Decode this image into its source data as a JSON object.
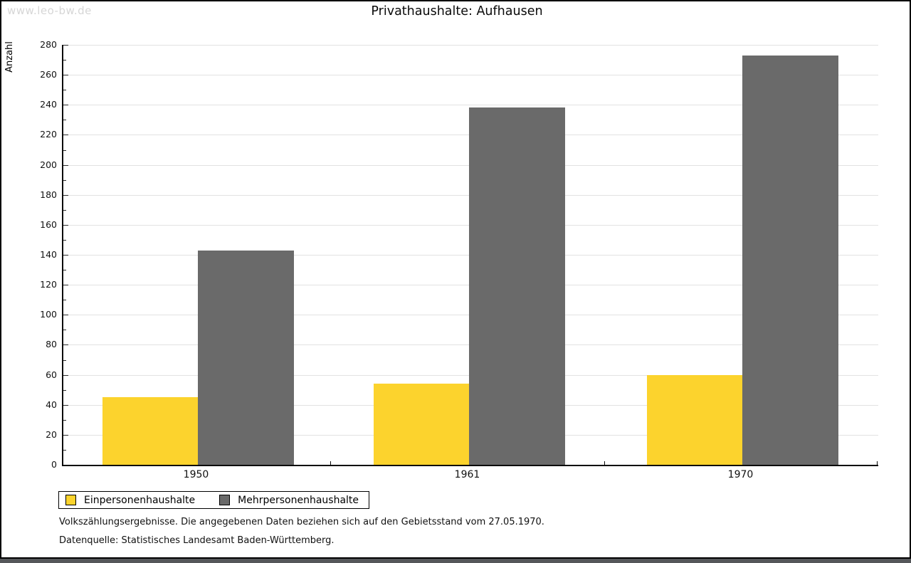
{
  "watermark": "www.leo-bw.de",
  "title": "Privathaushalte: Aufhausen",
  "chart_data": {
    "type": "bar",
    "title": "Privathaushalte: Aufhausen",
    "categories": [
      "1950",
      "1961",
      "1970"
    ],
    "series": [
      {
        "name": "Einpersonenhaushalte",
        "color": "#fcd32d",
        "values": [
          45,
          54,
          60
        ]
      },
      {
        "name": "Mehrpersonenhaushalte",
        "color": "#6a6a6a",
        "values": [
          143,
          238,
          273
        ]
      }
    ],
    "xlabel": "",
    "ylabel": "Anzahl",
    "ylim": [
      0,
      280
    ],
    "ytick_step": 20,
    "minor_tick_step": 10,
    "grid": true,
    "legend_position": "bottom-left",
    "gridline_color": "#e2e2e2"
  },
  "footer": {
    "line1": "Volkszählungsergebnisse. Die angegebenen Daten beziehen sich auf den Gebietsstand vom 27.05.1970.",
    "line2": "Datenquelle: Statistisches Landesamt Baden-Württemberg."
  }
}
